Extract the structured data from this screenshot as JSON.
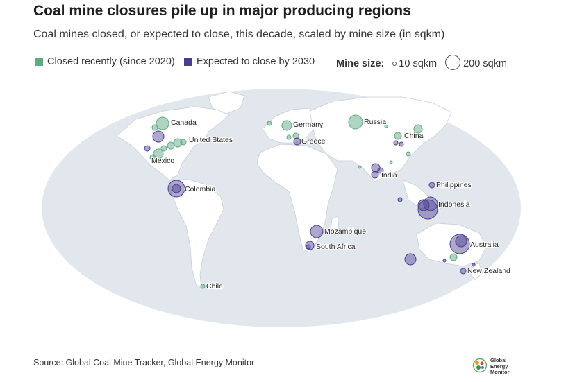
{
  "title": "Coal mine closures pile up in major producing regions",
  "subtitle": "Coal mines closed, or expected to close, this decade, scaled by mine size (in sqkm)",
  "legend": {
    "closed_label": "Closed recently (since 2020)",
    "closed_color": "#5fa983",
    "expected_label": "Expected to close by 2030",
    "expected_color": "#4a3d8f",
    "size_title": "Mine size:",
    "size_small": "10 sqkm",
    "size_large": "200 sqkm"
  },
  "colors": {
    "ocean": "#e2e7ee",
    "land": "#ffffff",
    "land_border": "#c9ced6"
  },
  "labels": {
    "canada": "Canada",
    "united_states": "United States",
    "mexico": "Mexico",
    "colombia": "Colombia",
    "chile": "Chile",
    "germany": "Germany",
    "greece": "Greece",
    "russia": "Russia",
    "china": "China",
    "india": "India",
    "philippines": "Philippines",
    "indonesia": "Indonesia",
    "mozambique": "Mozambique",
    "south_africa": "South Africa",
    "australia": "Australia",
    "new_zealand": "New Zealand"
  },
  "source": "Source: Global Coal Mine Tracker, Global Energy Monitor",
  "logo": {
    "line1": "Global",
    "line2": "Energy",
    "line3": "Monitor"
  }
}
